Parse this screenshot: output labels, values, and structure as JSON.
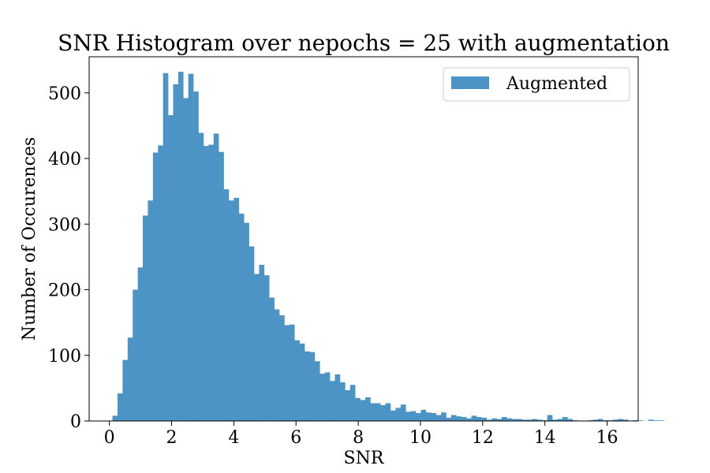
{
  "chart_data": {
    "type": "bar",
    "title": "SNR Histogram over nepochs = 25 with augmentation",
    "xlabel": "SNR",
    "ylabel": "Number of Occurences",
    "xlim": [
      -0.65,
      17.0
    ],
    "ylim": [
      0,
      555
    ],
    "xticks": [
      0,
      2,
      4,
      6,
      8,
      10,
      12,
      14,
      16
    ],
    "yticks": [
      0,
      100,
      200,
      300,
      400,
      500
    ],
    "grid": false,
    "legend": {
      "placement": "top-right"
    },
    "color": "#4c94c5",
    "bin_start": 0.1,
    "bin_width": 0.1625,
    "series": [
      {
        "name": "Augmented",
        "values": [
          8,
          42,
          93,
          127,
          200,
          234,
          313,
          336,
          409,
          420,
          530,
          466,
          513,
          532,
          492,
          529,
          502,
          439,
          419,
          421,
          438,
          410,
          353,
          336,
          340,
          316,
          302,
          266,
          224,
          238,
          222,
          188,
          170,
          161,
          146,
          147,
          123,
          118,
          106,
          105,
          91,
          72,
          74,
          61,
          71,
          59,
          47,
          55,
          35,
          32,
          36,
          27,
          27,
          24,
          27,
          16,
          20,
          25,
          14,
          15,
          12,
          17,
          13,
          12,
          9,
          13,
          5,
          9,
          7,
          6,
          4,
          8,
          6,
          5,
          2,
          4,
          3,
          6,
          4,
          3,
          3,
          2,
          2,
          3,
          2,
          1,
          9,
          2,
          3,
          6,
          3,
          1,
          0,
          0,
          1,
          2,
          3,
          1,
          1,
          2,
          3,
          2,
          0,
          1,
          1,
          0,
          2,
          1,
          1
        ]
      }
    ]
  }
}
